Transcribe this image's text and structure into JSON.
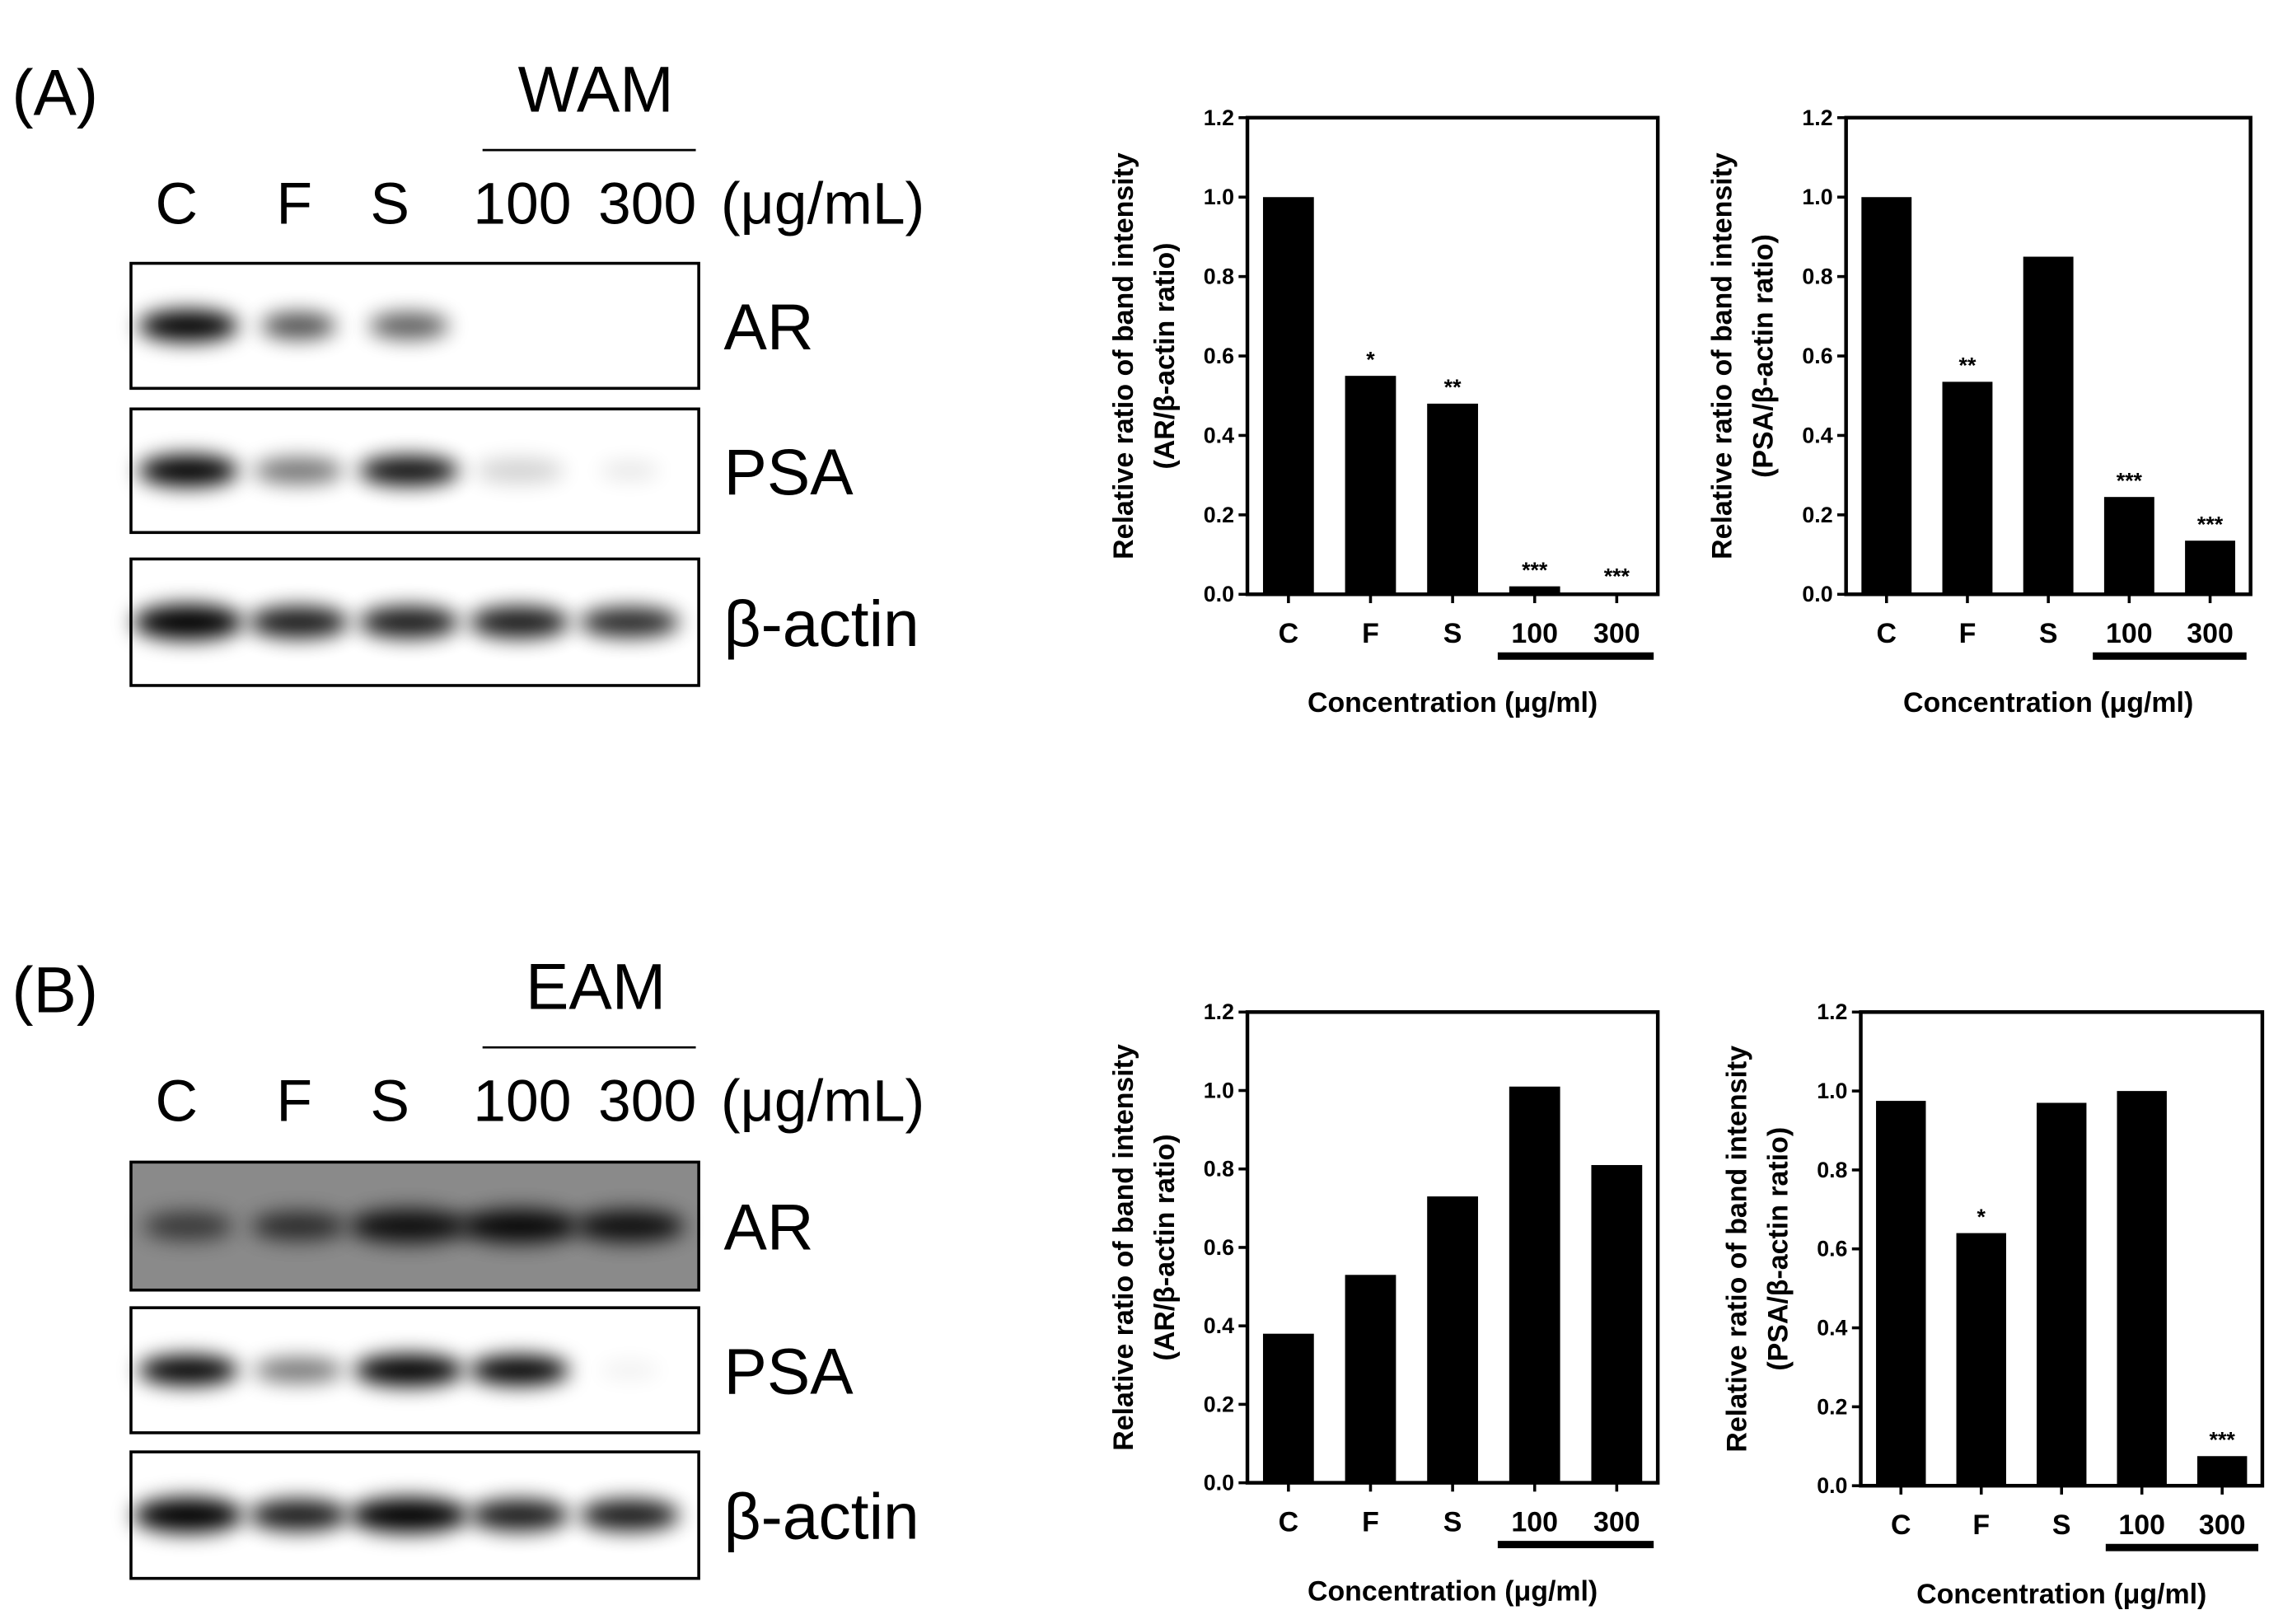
{
  "panels": [
    {
      "label": "(A)",
      "extract": "WAM",
      "lanes": [
        "C",
        "F",
        "S",
        "100",
        "300"
      ],
      "unit": "(μg/mL)",
      "rows": [
        "AR",
        "PSA",
        "β-actin"
      ]
    },
    {
      "label": "(B)",
      "extract": "EAM",
      "lanes": [
        "C",
        "F",
        "S",
        "100",
        "300"
      ],
      "unit": "(μg/mL)",
      "rows": [
        "AR",
        "PSA",
        "β-actin"
      ]
    }
  ],
  "chart_data": [
    {
      "type": "bar",
      "ylabel": "Relative ratio of band intensity",
      "ylabel2": "(AR/β-actin ratio)",
      "xlabel": "Concentration (μg/ml)",
      "categories": [
        "C",
        "F",
        "S",
        "100",
        "300"
      ],
      "values": [
        1.0,
        0.55,
        0.48,
        0.02,
        0.004
      ],
      "significance": [
        null,
        "*",
        "**",
        "***",
        "***"
      ],
      "color": "#000000",
      "ylim": [
        0,
        1.2
      ],
      "yticks": [
        {
          "value": 0,
          "label": "0.0"
        },
        0.2,
        0.4,
        0.6,
        0.8,
        {
          "value": 1,
          "label": "1.0"
        },
        1.2
      ]
    },
    {
      "type": "bar",
      "ylabel": "Relative ratio of band intensity",
      "ylabel2": "(PSA/β-actin ratio)",
      "xlabel": "Concentration (μg/ml)",
      "categories": [
        "C",
        "F",
        "S",
        "100",
        "300"
      ],
      "values": [
        1.0,
        0.535,
        0.85,
        0.245,
        0.135
      ],
      "significance": [
        null,
        "**",
        null,
        "***",
        "***"
      ],
      "color": "#000000",
      "ylim": [
        0,
        1.2
      ],
      "yticks": [
        {
          "value": 0,
          "label": "0.0"
        },
        0.2,
        0.4,
        0.6,
        0.8,
        {
          "value": 1,
          "label": "1.0"
        },
        1.2
      ]
    },
    {
      "type": "bar",
      "ylabel": "Relative ratio of band intensity",
      "ylabel2": "(AR/β-actin ratio)",
      "xlabel": "Concentration (μg/ml)",
      "categories": [
        "C",
        "F",
        "S",
        "100",
        "300"
      ],
      "values": [
        0.38,
        0.53,
        0.73,
        1.01,
        0.81
      ],
      "significance": [
        null,
        null,
        null,
        null,
        null
      ],
      "color": "#000000",
      "ylim": [
        0,
        1.2
      ],
      "yticks": [
        {
          "value": 0,
          "label": "0.0"
        },
        0.2,
        0.4,
        0.6,
        0.8,
        {
          "value": 1,
          "label": "1.0"
        },
        1.2
      ]
    },
    {
      "type": "bar",
      "ylabel": "Relative ratio of band intensity",
      "ylabel2": "(PSA/β-actin ratio)",
      "xlabel": "Concentration (μg/ml)",
      "categories": [
        "C",
        "F",
        "S",
        "100",
        "300"
      ],
      "values": [
        0.975,
        0.64,
        0.97,
        1.0,
        0.075
      ],
      "significance": [
        null,
        "*",
        null,
        null,
        "***"
      ],
      "color": "#000000",
      "ylim": [
        0,
        1.2
      ],
      "yticks": [
        {
          "value": 0,
          "label": "0.0"
        },
        0.2,
        0.4,
        0.6,
        0.8,
        {
          "value": 1,
          "label": "1.0"
        },
        1.2
      ]
    }
  ]
}
